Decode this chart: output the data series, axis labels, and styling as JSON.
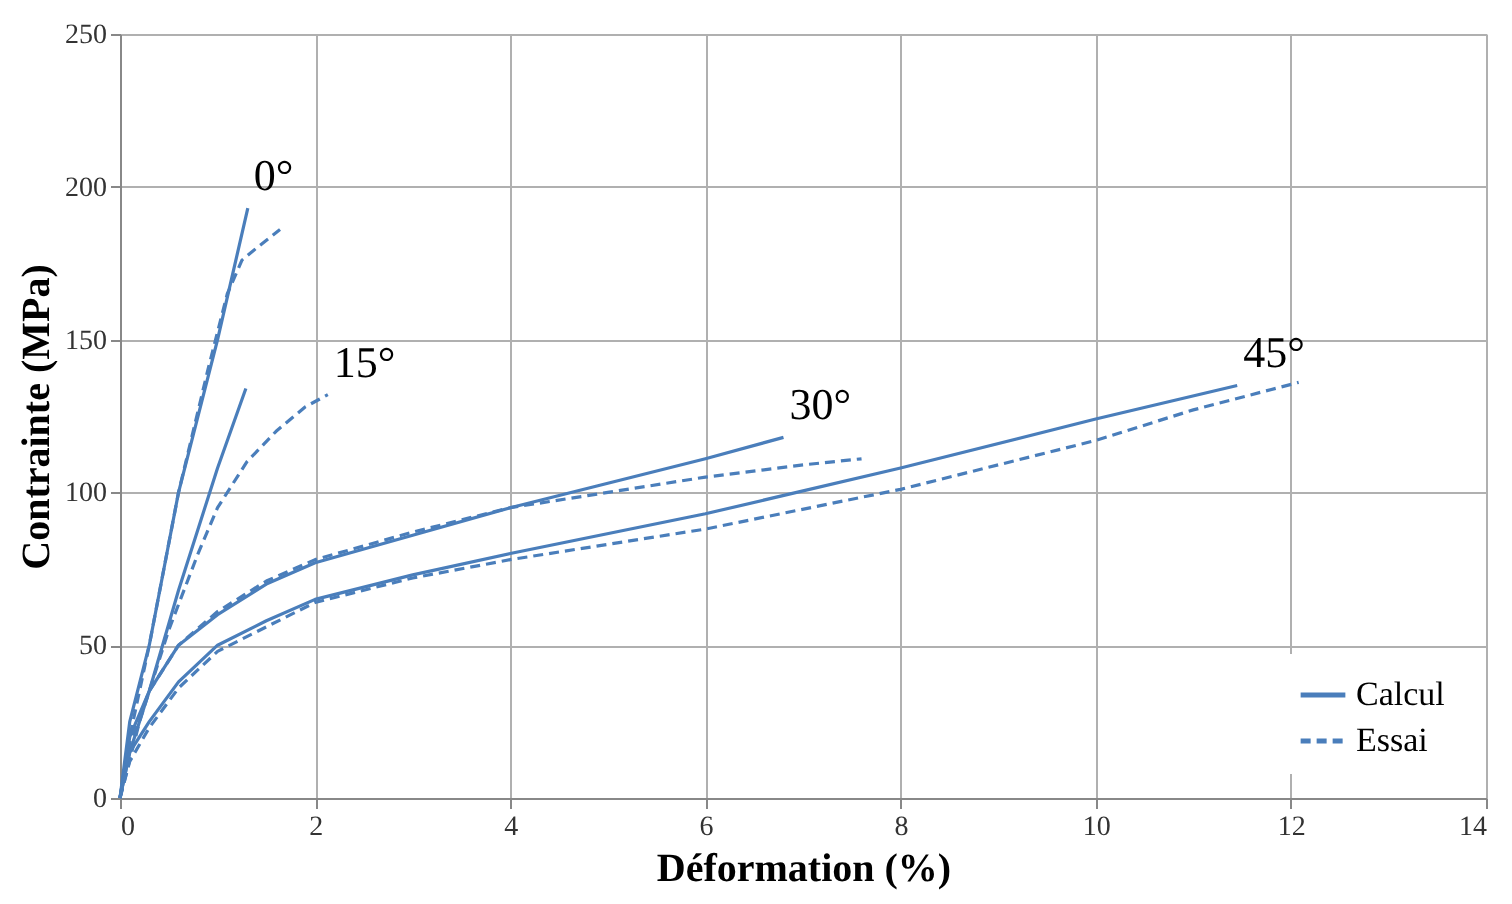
{
  "chart_data": {
    "type": "line",
    "xlabel": "Déformation (%)",
    "ylabel": "Contrainte (MPa)",
    "xlim": [
      0,
      14
    ],
    "xticks": [
      0,
      2,
      4,
      6,
      8,
      10,
      12,
      14
    ],
    "ylim": [
      0,
      250
    ],
    "yticks": [
      0,
      50,
      100,
      150,
      200,
      250
    ],
    "grid": true,
    "legend": "bottom right",
    "marker": "none",
    "series": [
      {
        "name": "Calcul",
        "color": "#4a7ebb",
        "line_style": "solid",
        "x": [
          0,
          0.1,
          0.3,
          0.6,
          1.0,
          1.31
        ],
        "values": [
          0,
          25,
          50,
          100,
          150,
          193
        ]
      },
      {
        "name": "Essai",
        "color": "#4a7ebb",
        "line_style": "dashed",
        "x": [
          0,
          0.1,
          0.3,
          0.6,
          0.9,
          1.1,
          1.25,
          1.4,
          1.64
        ],
        "values": [
          0,
          20,
          50,
          100,
          140,
          165,
          176,
          180,
          186
        ]
      },
      {
        "color": "#4a7ebb",
        "line_style": "solid",
        "x": [
          0,
          0.1,
          0.3,
          0.6,
          1.0,
          1.29
        ],
        "values": [
          0,
          15,
          35,
          68,
          108,
          134
        ]
      },
      {
        "color": "#4a7ebb",
        "line_style": "dashed",
        "x": [
          0,
          0.2,
          0.5,
          0.8,
          1.0,
          1.3,
          1.6,
          1.9,
          2.13
        ],
        "values": [
          0,
          25,
          55,
          80,
          95,
          110,
          120,
          128,
          132
        ]
      },
      {
        "color": "#4a7ebb",
        "line_style": "solid",
        "x": [
          0,
          0.1,
          0.3,
          0.6,
          1.0,
          1.5,
          2,
          3,
          4,
          5,
          6,
          6.8
        ],
        "values": [
          0,
          20,
          35,
          50,
          60,
          70,
          77,
          86,
          95,
          103,
          111,
          118
        ]
      },
      {
        "color": "#4a7ebb",
        "line_style": "dashed",
        "x": [
          0,
          0.1,
          0.3,
          0.6,
          1.0,
          1.5,
          2,
          3,
          4,
          5,
          6,
          7,
          7.6
        ],
        "values": [
          0,
          18,
          35,
          50,
          61,
          71,
          78,
          87,
          95,
          100,
          105,
          109,
          111
        ]
      },
      {
        "color": "#4a7ebb",
        "line_style": "solid",
        "x": [
          0,
          0.1,
          0.3,
          0.6,
          1,
          1.5,
          2,
          3,
          4,
          6,
          8,
          10,
          11.45
        ],
        "values": [
          0,
          15,
          25,
          38,
          50,
          58,
          65,
          73,
          80,
          93,
          108,
          124,
          135
        ]
      },
      {
        "color": "#4a7ebb",
        "line_style": "dashed",
        "x": [
          0,
          0.1,
          0.3,
          0.6,
          1,
          2,
          3,
          4,
          6,
          8,
          10,
          11,
          12.08
        ],
        "values": [
          0,
          12,
          23,
          36,
          48,
          64,
          72,
          78,
          88,
          101,
          117,
          127,
          136
        ]
      }
    ],
    "annotations": [
      {
        "text": "0°",
        "x": 1.31,
        "y": 193
      },
      {
        "text": "15°",
        "x": 2.13,
        "y": 132
      },
      {
        "text": "30°",
        "x": 6.8,
        "y": 118
      },
      {
        "text": "45°",
        "x": 11.45,
        "y": 135
      }
    ]
  }
}
